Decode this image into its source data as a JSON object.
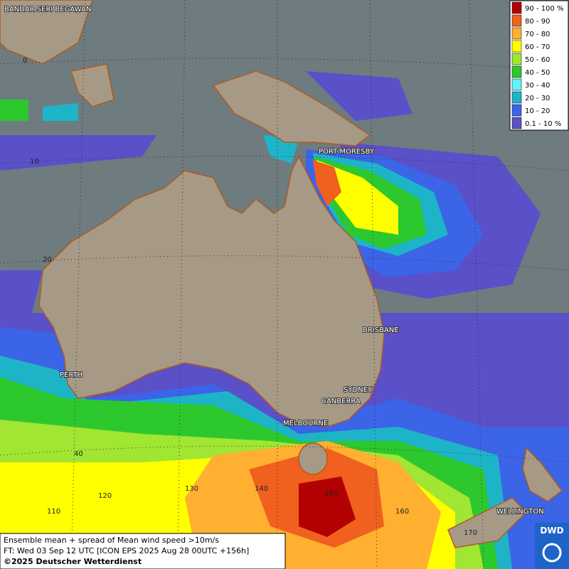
{
  "map": {
    "cities": [
      "BANDAR SERI BEGAWAN",
      "PORT MORESBY",
      "BRISBANE",
      "SYDNEY",
      "CANBERRA",
      "MELBOURNE",
      "PERTH",
      "WELLINGTON"
    ],
    "grid_labels": [
      "0",
      "10",
      "20",
      "40",
      "110",
      "120",
      "130",
      "140",
      "150",
      "160",
      "170"
    ],
    "legend": [
      {
        "label": "90 - 100 %",
        "color": "#b30000"
      },
      {
        "label": "80 - 90",
        "color": "#f0601e"
      },
      {
        "label": "70 - 80",
        "color": "#ffb030"
      },
      {
        "label": "60 - 70",
        "color": "#ffff00"
      },
      {
        "label": "50 - 60",
        "color": "#a0e632"
      },
      {
        "label": "40 - 50",
        "color": "#2dc82d"
      },
      {
        "label": "30 - 40",
        "color": "#64f0ff"
      },
      {
        "label": "20 - 30",
        "color": "#1eb4c8"
      },
      {
        "label": "10 - 20",
        "color": "#3c64e6"
      },
      {
        "label": "0.1 - 10 %",
        "color": "#5a50c8"
      }
    ],
    "caption": [
      "Ensemble mean + spread of Mean wind speed >10m/s",
      "FT: Wed 03 Sep 12 UTC [ICON EPS 2025 Aug 28 00UTC +156h]",
      "©2025 Deutscher Wetterdienst"
    ],
    "logo": "DWD"
  }
}
